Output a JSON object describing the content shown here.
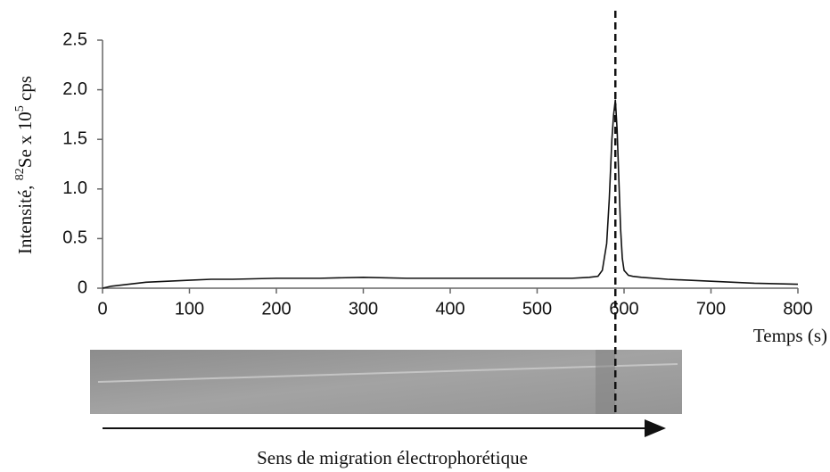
{
  "chart_data": {
    "type": "line",
    "y_label": {
      "prefix": "Intensité, ",
      "sup1": "82",
      "mid": "Se x 10",
      "sup2": "5",
      "suffix": " cps"
    },
    "x_label": "Temps (s)",
    "caption": "Sens de migration électrophorétique",
    "x": [
      0,
      10,
      20,
      30,
      50,
      75,
      100,
      125,
      150,
      200,
      250,
      300,
      350,
      400,
      450,
      500,
      540,
      560,
      570,
      575,
      580,
      583,
      586,
      588,
      590,
      592,
      594,
      596,
      598,
      600,
      605,
      610,
      620,
      650,
      700,
      750,
      800
    ],
    "series": [
      {
        "color": "#111111",
        "values": [
          0,
          0.02,
          0.03,
          0.04,
          0.06,
          0.07,
          0.08,
          0.09,
          0.09,
          0.1,
          0.1,
          0.11,
          0.1,
          0.1,
          0.1,
          0.1,
          0.1,
          0.11,
          0.12,
          0.18,
          0.45,
          0.9,
          1.5,
          1.75,
          1.9,
          1.6,
          1.1,
          0.6,
          0.3,
          0.18,
          0.13,
          0.12,
          0.11,
          0.09,
          0.07,
          0.05,
          0.04
        ]
      }
    ],
    "marker_x": 590,
    "xlim": [
      0,
      800
    ],
    "xticks": [
      0,
      100,
      200,
      300,
      400,
      500,
      600,
      700,
      800
    ],
    "ylim": [
      0,
      2.5
    ],
    "yticks": [
      0,
      0.5,
      {
        "value": 1,
        "label": "1.0"
      },
      {
        "value": 1.5,
        "label": "1.5"
      },
      {
        "value": 2,
        "label": "2.0"
      },
      {
        "value": 2.5,
        "label": "2.5"
      }
    ]
  }
}
